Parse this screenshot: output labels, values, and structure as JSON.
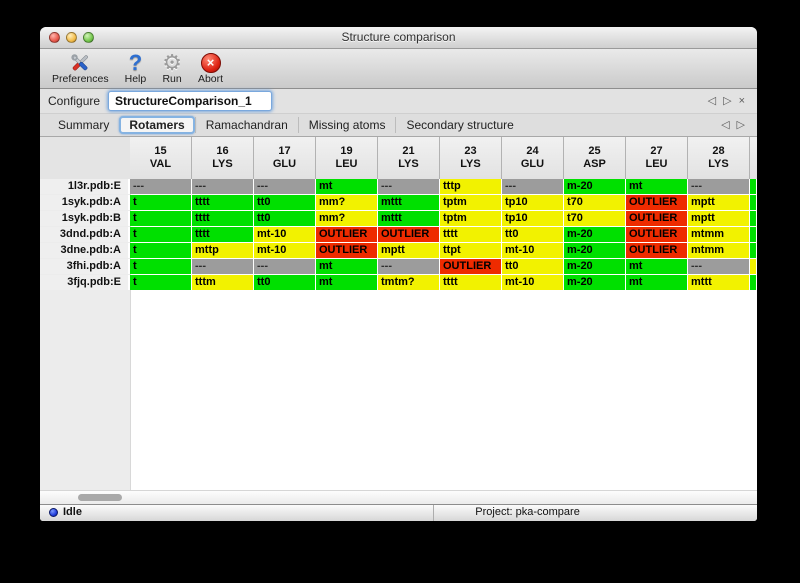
{
  "window": {
    "title": "Structure comparison"
  },
  "toolbar": {
    "items": [
      {
        "label": "Preferences",
        "icon": "tools-icon"
      },
      {
        "label": "Help",
        "icon": "question-icon"
      },
      {
        "label": "Run",
        "icon": "gear-icon"
      },
      {
        "label": "Abort",
        "icon": "abort-icon"
      }
    ],
    "abort_glyph": "×"
  },
  "configure": {
    "label": "Configure",
    "value": "StructureComparison_1",
    "nav": {
      "prev": "◁",
      "next": "▷",
      "close": "×"
    }
  },
  "tabs": [
    {
      "label": "Summary",
      "selected": false
    },
    {
      "label": "Rotamers",
      "selected": true
    },
    {
      "label": "Ramachandran",
      "selected": false
    },
    {
      "label": "Missing atoms",
      "selected": false
    },
    {
      "label": "Secondary structure",
      "selected": false
    }
  ],
  "tab_nav": {
    "prev": "◁",
    "next": "▷"
  },
  "colors": {
    "green": "#00e000",
    "yellow": "#f2f200",
    "red": "#ee2b00",
    "gray": "#9c9c9c"
  },
  "table": {
    "columns": [
      {
        "num": "15",
        "res": "VAL"
      },
      {
        "num": "16",
        "res": "LYS"
      },
      {
        "num": "17",
        "res": "GLU"
      },
      {
        "num": "19",
        "res": "LEU"
      },
      {
        "num": "21",
        "res": "LYS"
      },
      {
        "num": "23",
        "res": "LYS"
      },
      {
        "num": "24",
        "res": "GLU"
      },
      {
        "num": "25",
        "res": "ASP"
      },
      {
        "num": "27",
        "res": "LEU"
      },
      {
        "num": "28",
        "res": "LYS"
      }
    ],
    "rows": [
      {
        "label": "1l3r.pdb:E",
        "extra": "green",
        "cells": [
          {
            "text": "---",
            "status": "gray"
          },
          {
            "text": "---",
            "status": "gray"
          },
          {
            "text": "---",
            "status": "gray"
          },
          {
            "text": "mt",
            "status": "green"
          },
          {
            "text": "---",
            "status": "gray"
          },
          {
            "text": "tttp",
            "status": "yellow"
          },
          {
            "text": "---",
            "status": "gray"
          },
          {
            "text": "m-20",
            "status": "green"
          },
          {
            "text": "mt",
            "status": "green"
          },
          {
            "text": "---",
            "status": "gray"
          }
        ]
      },
      {
        "label": "1syk.pdb:A",
        "extra": "green",
        "cells": [
          {
            "text": "t",
            "status": "green"
          },
          {
            "text": "tttt",
            "status": "green"
          },
          {
            "text": "tt0",
            "status": "green"
          },
          {
            "text": "mm?",
            "status": "yellow"
          },
          {
            "text": "mttt",
            "status": "green"
          },
          {
            "text": "tptm",
            "status": "yellow"
          },
          {
            "text": "tp10",
            "status": "yellow"
          },
          {
            "text": "t70",
            "status": "yellow"
          },
          {
            "text": "OUTLIER",
            "status": "red"
          },
          {
            "text": "mptt",
            "status": "yellow"
          }
        ]
      },
      {
        "label": "1syk.pdb:B",
        "extra": "green",
        "cells": [
          {
            "text": "t",
            "status": "green"
          },
          {
            "text": "tttt",
            "status": "green"
          },
          {
            "text": "tt0",
            "status": "green"
          },
          {
            "text": "mm?",
            "status": "yellow"
          },
          {
            "text": "mttt",
            "status": "green"
          },
          {
            "text": "tptm",
            "status": "yellow"
          },
          {
            "text": "tp10",
            "status": "yellow"
          },
          {
            "text": "t70",
            "status": "yellow"
          },
          {
            "text": "OUTLIER",
            "status": "red"
          },
          {
            "text": "mptt",
            "status": "yellow"
          }
        ]
      },
      {
        "label": "3dnd.pdb:A",
        "extra": "green",
        "cells": [
          {
            "text": "t",
            "status": "green"
          },
          {
            "text": "tttt",
            "status": "green"
          },
          {
            "text": "mt-10",
            "status": "yellow"
          },
          {
            "text": "OUTLIER",
            "status": "red"
          },
          {
            "text": "OUTLIER",
            "status": "red"
          },
          {
            "text": "tttt",
            "status": "yellow"
          },
          {
            "text": "tt0",
            "status": "yellow"
          },
          {
            "text": "m-20",
            "status": "green"
          },
          {
            "text": "OUTLIER",
            "status": "red"
          },
          {
            "text": "mtmm",
            "status": "yellow"
          }
        ]
      },
      {
        "label": "3dne.pdb:A",
        "extra": "green",
        "cells": [
          {
            "text": "t",
            "status": "green"
          },
          {
            "text": "mttp",
            "status": "yellow"
          },
          {
            "text": "mt-10",
            "status": "yellow"
          },
          {
            "text": "OUTLIER",
            "status": "red"
          },
          {
            "text": "mptt",
            "status": "yellow"
          },
          {
            "text": "ttpt",
            "status": "yellow"
          },
          {
            "text": "mt-10",
            "status": "yellow"
          },
          {
            "text": "m-20",
            "status": "green"
          },
          {
            "text": "OUTLIER",
            "status": "red"
          },
          {
            "text": "mtmm",
            "status": "yellow"
          }
        ]
      },
      {
        "label": "3fhi.pdb:A",
        "extra": "yellow",
        "cells": [
          {
            "text": "t",
            "status": "green"
          },
          {
            "text": "---",
            "status": "gray"
          },
          {
            "text": "---",
            "status": "gray"
          },
          {
            "text": "mt",
            "status": "green"
          },
          {
            "text": "---",
            "status": "gray"
          },
          {
            "text": "OUTLIER",
            "status": "red"
          },
          {
            "text": "tt0",
            "status": "yellow"
          },
          {
            "text": "m-20",
            "status": "green"
          },
          {
            "text": "mt",
            "status": "green"
          },
          {
            "text": "---",
            "status": "gray"
          }
        ]
      },
      {
        "label": "3fjq.pdb:E",
        "extra": "green",
        "cells": [
          {
            "text": "t",
            "status": "green"
          },
          {
            "text": "tttm",
            "status": "yellow"
          },
          {
            "text": "tt0",
            "status": "green"
          },
          {
            "text": "mt",
            "status": "green"
          },
          {
            "text": "tmtm?",
            "status": "yellow"
          },
          {
            "text": "tttt",
            "status": "yellow"
          },
          {
            "text": "mt-10",
            "status": "yellow"
          },
          {
            "text": "m-20",
            "status": "green"
          },
          {
            "text": "mt",
            "status": "green"
          },
          {
            "text": "mttt",
            "status": "yellow"
          }
        ]
      }
    ]
  },
  "status": {
    "state": "Idle",
    "project": "Project: pka-compare"
  }
}
